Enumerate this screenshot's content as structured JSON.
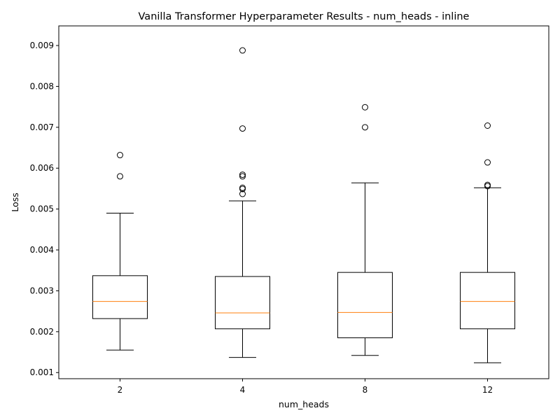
{
  "chart_data": {
    "type": "boxplot",
    "title": "Vanilla Transformer Hyperparameter Results - num_heads - inline",
    "xlabel": "num_heads",
    "ylabel": "Loss",
    "ylim": [
      0.00085,
      0.00948
    ],
    "yticks": [
      0.001,
      0.002,
      0.003,
      0.004,
      0.005,
      0.006,
      0.007,
      0.008,
      0.009
    ],
    "ytick_labels": [
      "0.001",
      "0.002",
      "0.003",
      "0.004",
      "0.005",
      "0.006",
      "0.007",
      "0.008",
      "0.009"
    ],
    "grid": false,
    "categories": [
      "2",
      "4",
      "8",
      "12"
    ],
    "boxes": [
      {
        "whislo": 0.00155,
        "q1": 0.00232,
        "med": 0.00274,
        "q3": 0.00337,
        "whishi": 0.0049,
        "fliers": [
          0.0058,
          0.00632
        ]
      },
      {
        "whislo": 0.00137,
        "q1": 0.00207,
        "med": 0.00246,
        "q3": 0.00335,
        "whishi": 0.0052,
        "fliers": [
          0.00537,
          0.00549,
          0.00552,
          0.0058,
          0.00584,
          0.00697,
          0.00888
        ]
      },
      {
        "whislo": 0.00142,
        "q1": 0.00185,
        "med": 0.00247,
        "q3": 0.00345,
        "whishi": 0.00564,
        "fliers": [
          0.007,
          0.00749
        ]
      },
      {
        "whislo": 0.00124,
        "q1": 0.00207,
        "med": 0.00274,
        "q3": 0.00345,
        "whishi": 0.00552,
        "fliers": [
          0.00556,
          0.00559,
          0.00614,
          0.00704
        ]
      }
    ],
    "colors": {
      "box": "#000000",
      "median": "#ff7f0e",
      "flier": "#000000"
    }
  }
}
